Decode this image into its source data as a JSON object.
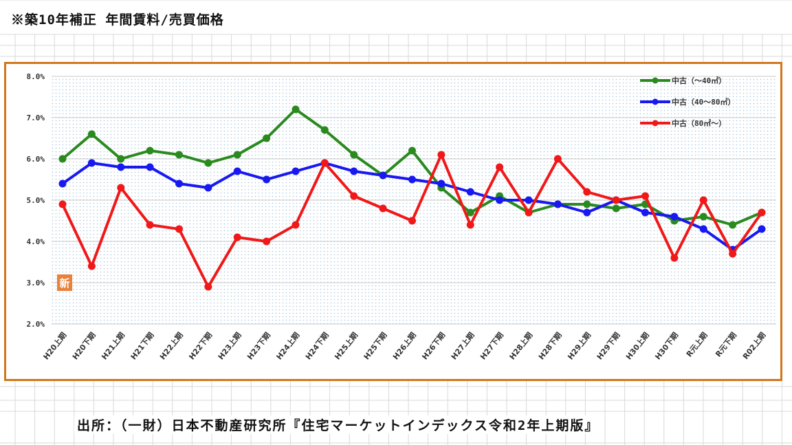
{
  "title": "※築10年補正 年間賃料/売買価格",
  "source": "出所：（一財）日本不動産研究所『住宅マーケットインデックス令和2年上期版』",
  "badge": "新",
  "colors": {
    "frame": "#d2761a",
    "series": [
      "#2a8a1e",
      "#1818f0",
      "#f01818"
    ],
    "badge": "#e8813a"
  },
  "chart_data": {
    "type": "line",
    "title": "",
    "xlabel": "",
    "ylabel": "",
    "ylim": [
      2.0,
      8.0
    ],
    "yticks": [
      "2.0%",
      "3.0%",
      "4.0%",
      "5.0%",
      "6.0%",
      "7.0%",
      "8.0%"
    ],
    "ytick_values": [
      2.0,
      3.0,
      4.0,
      5.0,
      6.0,
      7.0,
      8.0
    ],
    "grid": true,
    "legend_position": "top-right",
    "categories": [
      "H20上期",
      "H20下期",
      "H21上期",
      "H21下期",
      "H22上期",
      "H22下期",
      "H23上期",
      "H23下期",
      "H24上期",
      "H24下期",
      "H25上期",
      "H25下期",
      "H26上期",
      "H26下期",
      "H27上期",
      "H27下期",
      "H28上期",
      "H28下期",
      "H29上期",
      "H29下期",
      "H30上期",
      "H30下期",
      "R元上期",
      "R元下期",
      "R02上期"
    ],
    "series": [
      {
        "name": "中古（～40㎡）",
        "values": [
          6.0,
          6.6,
          6.0,
          6.2,
          6.1,
          5.9,
          6.1,
          6.5,
          7.2,
          6.7,
          6.1,
          5.6,
          6.2,
          5.3,
          4.7,
          5.1,
          4.7,
          4.9,
          4.9,
          4.8,
          4.9,
          4.5,
          4.6,
          4.4,
          4.7
        ]
      },
      {
        "name": "中古（40～80㎡）",
        "values": [
          5.4,
          5.9,
          5.8,
          5.8,
          5.4,
          5.3,
          5.7,
          5.5,
          5.7,
          5.9,
          5.7,
          5.6,
          5.5,
          5.4,
          5.2,
          5.0,
          5.0,
          4.9,
          4.7,
          5.0,
          4.7,
          4.6,
          4.3,
          3.8,
          4.3
        ]
      },
      {
        "name": "中古（80㎡～）",
        "values": [
          4.9,
          3.4,
          5.3,
          4.4,
          4.3,
          2.9,
          4.1,
          4.0,
          4.4,
          5.9,
          5.1,
          4.8,
          4.5,
          6.1,
          4.4,
          5.8,
          4.7,
          6.0,
          5.2,
          5.0,
          5.1,
          3.6,
          5.0,
          3.7,
          4.7
        ]
      }
    ]
  }
}
